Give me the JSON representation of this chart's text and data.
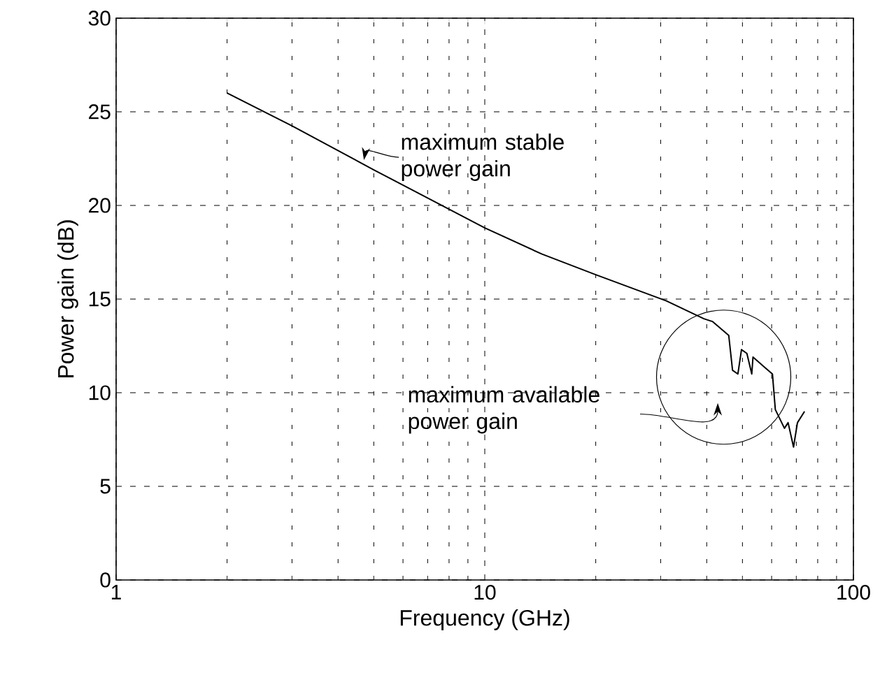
{
  "chart_data": {
    "type": "line",
    "xlabel": "Frequency (GHz)",
    "ylabel": "Power gain (dB)",
    "log": "x",
    "grid": true,
    "color": "#000000",
    "xlim": [
      1,
      100
    ],
    "xticks": [
      1,
      10,
      100
    ],
    "ylim": [
      0,
      30
    ],
    "yticks": [
      0,
      5,
      10,
      15,
      20,
      25,
      30
    ],
    "x": [
      2,
      3,
      5,
      10,
      14.3,
      20,
      31.1,
      39.3,
      41.5,
      45.9,
      47,
      48.6,
      49.7,
      51.4,
      53,
      53.4,
      57.9,
      60.3,
      61.4,
      65,
      66.5,
      68.8,
      70.5,
      73.7
    ],
    "values": [
      26.0,
      24.25,
      21.9,
      18.8,
      17.4,
      16.3,
      14.9,
      13.95,
      13.8,
      13.06,
      11.2,
      11.0,
      12.3,
      12.1,
      11.0,
      11.9,
      11.3,
      11.0,
      9.1,
      8.1,
      8.4,
      7.1,
      8.4,
      9.0
    ],
    "annotations": [
      {
        "text": "maximum stable\npower gain",
        "x": 4.7,
        "y": 22.2
      },
      "maximum available\npower gain"
    ]
  }
}
